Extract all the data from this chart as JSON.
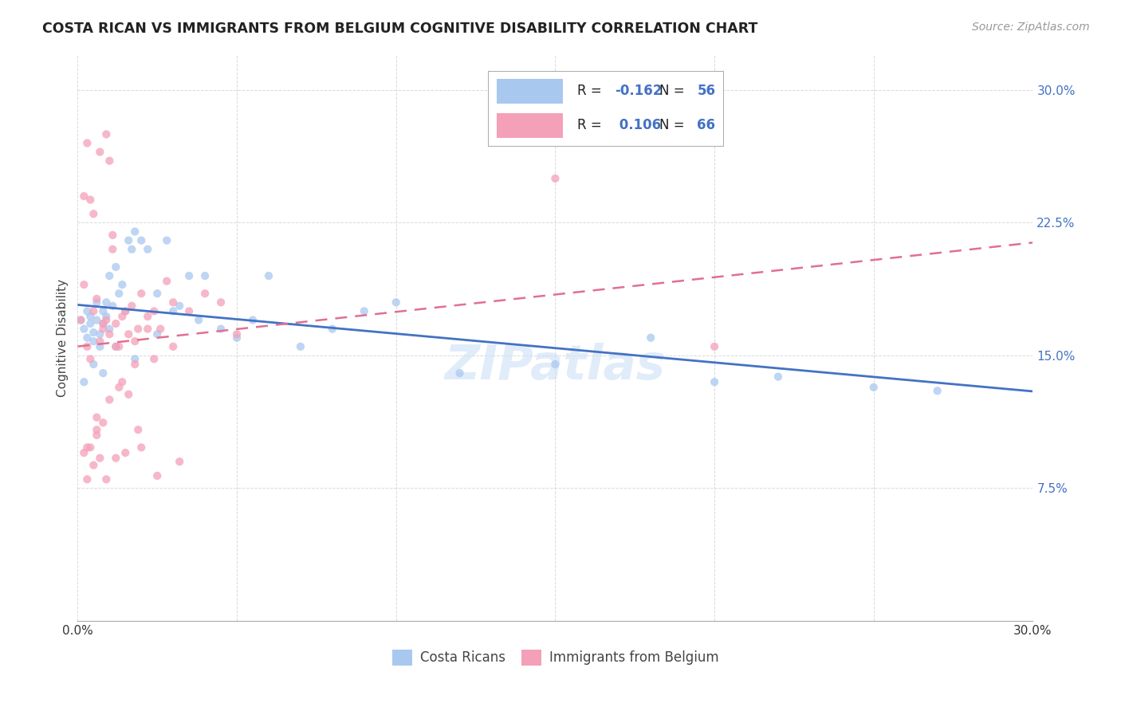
{
  "title": "COSTA RICAN VS IMMIGRANTS FROM BELGIUM COGNITIVE DISABILITY CORRELATION CHART",
  "source": "Source: ZipAtlas.com",
  "ylabel": "Cognitive Disability",
  "xlim": [
    0.0,
    0.3
  ],
  "ylim": [
    0.0,
    0.32
  ],
  "legend_label_1": "Costa Ricans",
  "legend_label_2": "Immigrants from Belgium",
  "R1": "-0.162",
  "N1": "56",
  "R2": "0.106",
  "N2": "66",
  "color_blue": "#a8c8f0",
  "color_pink": "#f4a0b8",
  "line_color_blue": "#4472c4",
  "line_color_pink": "#e07090",
  "background_color": "#ffffff",
  "scatter_alpha": 0.75,
  "scatter_size": 55,
  "costa_rican_x": [
    0.001,
    0.002,
    0.003,
    0.003,
    0.004,
    0.004,
    0.005,
    0.005,
    0.006,
    0.006,
    0.007,
    0.007,
    0.008,
    0.008,
    0.009,
    0.009,
    0.01,
    0.01,
    0.011,
    0.012,
    0.013,
    0.014,
    0.015,
    0.016,
    0.017,
    0.018,
    0.02,
    0.022,
    0.025,
    0.028,
    0.03,
    0.032,
    0.035,
    0.038,
    0.04,
    0.045,
    0.05,
    0.055,
    0.06,
    0.07,
    0.08,
    0.09,
    0.1,
    0.12,
    0.15,
    0.18,
    0.2,
    0.22,
    0.25,
    0.27,
    0.002,
    0.005,
    0.008,
    0.012,
    0.018,
    0.025
  ],
  "costa_rican_y": [
    0.17,
    0.165,
    0.16,
    0.175,
    0.168,
    0.172,
    0.163,
    0.158,
    0.17,
    0.18,
    0.162,
    0.155,
    0.175,
    0.168,
    0.172,
    0.18,
    0.165,
    0.195,
    0.178,
    0.2,
    0.185,
    0.19,
    0.175,
    0.215,
    0.21,
    0.22,
    0.215,
    0.21,
    0.185,
    0.215,
    0.175,
    0.178,
    0.195,
    0.17,
    0.195,
    0.165,
    0.16,
    0.17,
    0.195,
    0.155,
    0.165,
    0.175,
    0.18,
    0.14,
    0.145,
    0.16,
    0.135,
    0.138,
    0.132,
    0.13,
    0.135,
    0.145,
    0.14,
    0.155,
    0.148,
    0.162
  ],
  "belgium_x": [
    0.001,
    0.002,
    0.002,
    0.003,
    0.003,
    0.004,
    0.004,
    0.005,
    0.005,
    0.006,
    0.006,
    0.007,
    0.007,
    0.008,
    0.008,
    0.009,
    0.009,
    0.01,
    0.01,
    0.011,
    0.011,
    0.012,
    0.012,
    0.013,
    0.014,
    0.015,
    0.016,
    0.017,
    0.018,
    0.019,
    0.02,
    0.022,
    0.024,
    0.026,
    0.028,
    0.03,
    0.035,
    0.04,
    0.045,
    0.05,
    0.002,
    0.004,
    0.006,
    0.008,
    0.01,
    0.014,
    0.018,
    0.022,
    0.03,
    0.003,
    0.005,
    0.007,
    0.009,
    0.012,
    0.015,
    0.02,
    0.025,
    0.032,
    0.15,
    0.2,
    0.013,
    0.016,
    0.024,
    0.003,
    0.006,
    0.019
  ],
  "belgium_y": [
    0.17,
    0.19,
    0.24,
    0.155,
    0.27,
    0.148,
    0.238,
    0.175,
    0.23,
    0.182,
    0.115,
    0.158,
    0.265,
    0.165,
    0.168,
    0.17,
    0.275,
    0.162,
    0.26,
    0.21,
    0.218,
    0.168,
    0.155,
    0.155,
    0.172,
    0.175,
    0.162,
    0.178,
    0.145,
    0.165,
    0.185,
    0.172,
    0.175,
    0.165,
    0.192,
    0.18,
    0.175,
    0.185,
    0.18,
    0.162,
    0.095,
    0.098,
    0.105,
    0.112,
    0.125,
    0.135,
    0.158,
    0.165,
    0.155,
    0.08,
    0.088,
    0.092,
    0.08,
    0.092,
    0.095,
    0.098,
    0.082,
    0.09,
    0.25,
    0.155,
    0.132,
    0.128,
    0.148,
    0.098,
    0.108,
    0.108
  ]
}
